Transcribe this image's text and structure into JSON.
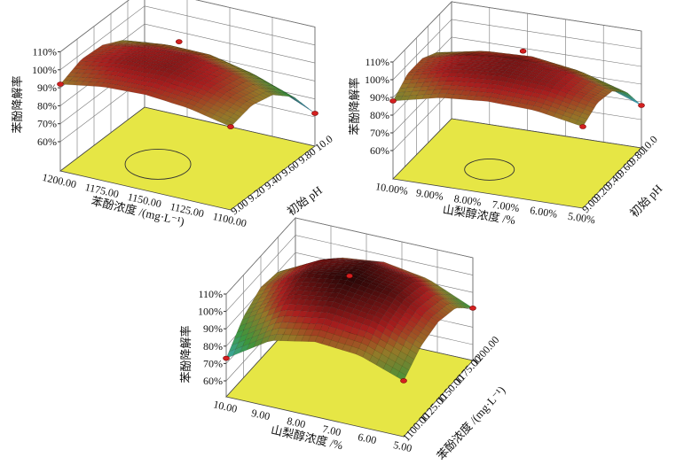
{
  "chart_data": [
    {
      "type": "surface3d",
      "zlabel": "苯酚降解率",
      "xlabel": "苯酚浓度 /(mg·L⁻¹)",
      "ylabel": "初始 pH",
      "x_tick_labels": [
        "1200.00",
        "1175.00",
        "1150.00",
        "1125.00",
        "1100.00"
      ],
      "y_tick_labels": [
        "9.00",
        "9.20",
        "9.40",
        "9.60",
        "9.80",
        "10.0"
      ],
      "z_tick_labels": [
        "60%",
        "70%",
        "80%",
        "90%",
        "100%",
        "110%"
      ],
      "xlim": [
        1100,
        1200
      ],
      "ylim": [
        9.0,
        10.0
      ],
      "zlim": [
        60,
        110
      ],
      "x": [
        1100,
        1125,
        1150,
        1175,
        1200
      ],
      "y": [
        9.0,
        9.25,
        9.5,
        9.75,
        10.0
      ],
      "z": [
        [
          90,
          93,
          90,
          80,
          62
        ],
        [
          95,
          99,
          97,
          88,
          72
        ],
        [
          97,
          102,
          101,
          93,
          78
        ],
        [
          96,
          101,
          100,
          93,
          80
        ],
        [
          92,
          97,
          96,
          90,
          78
        ]
      ],
      "points": [
        [
          1200,
          9.0,
          92
        ],
        [
          1100,
          9.0,
          90
        ],
        [
          1100,
          10.0,
          62
        ],
        [
          1160,
          9.6,
          103
        ]
      ],
      "floor_color": "#e6e645"
    },
    {
      "type": "surface3d",
      "zlabel": "苯酚降解率",
      "xlabel": "山梨醇浓度 /%",
      "ylabel": "初始 pH",
      "x_tick_labels": [
        "10.00%",
        "9.00%",
        "8.00%",
        "7.00%",
        "6.00%",
        "5.00%"
      ],
      "y_tick_labels": [
        "9.00",
        "9.20",
        "9.40",
        "9.60",
        "9.80",
        "10.0"
      ],
      "z_tick_labels": [
        "60%",
        "70%",
        "80%",
        "90%",
        "100%",
        "110%"
      ],
      "xlim": [
        5,
        10
      ],
      "ylim": [
        9.0,
        10.0
      ],
      "zlim": [
        60,
        110
      ],
      "x": [
        5,
        6.25,
        7.5,
        8.75,
        10
      ],
      "y": [
        9.0,
        9.25,
        9.5,
        9.75,
        10.0
      ],
      "z": [
        [
          90,
          95,
          93,
          84,
          68
        ],
        [
          95,
          101,
          100,
          92,
          78
        ],
        [
          96,
          103,
          103,
          96,
          83
        ],
        [
          94,
          101,
          101,
          95,
          83
        ],
        [
          88,
          95,
          95,
          90,
          80
        ]
      ],
      "points": [
        [
          10,
          9.0,
          88
        ],
        [
          5,
          9.0,
          90
        ],
        [
          5,
          10.0,
          68
        ],
        [
          7.5,
          9.6,
          104
        ]
      ],
      "floor_color": "#e6e645"
    },
    {
      "type": "surface3d",
      "zlabel": "苯酚降解率",
      "xlabel": "山梨醇浓度 /%",
      "ylabel": "苯酚浓度 /(mg·L⁻¹)",
      "x_tick_labels": [
        "10.00",
        "9.00",
        "8.00",
        "7.00",
        "6.00",
        "5.00"
      ],
      "y_tick_labels": [
        "1100.00",
        "1125.00",
        "1150.00",
        "1175.00",
        "1200.00"
      ],
      "z_tick_labels": [
        "60%",
        "70%",
        "80%",
        "90%",
        "100%",
        "110%"
      ],
      "xlim": [
        5,
        10
      ],
      "ylim": [
        1100,
        1200
      ],
      "zlim": [
        60,
        110
      ],
      "x": [
        5,
        6.25,
        7.5,
        8.75,
        10
      ],
      "y": [
        1100,
        1125,
        1150,
        1175,
        1200
      ],
      "z": [
        [
          83,
          92,
          95,
          92,
          81
        ],
        [
          92,
          102,
          106,
          103,
          92
        ],
        [
          94,
          105,
          110,
          107,
          96
        ],
        [
          89,
          101,
          106,
          103,
          93
        ],
        [
          73,
          86,
          92,
          90,
          80
        ]
      ],
      "points": [
        [
          10,
          1100,
          73
        ],
        [
          5,
          1100,
          83
        ],
        [
          5,
          1200,
          81
        ],
        [
          7.5,
          1150,
          110
        ]
      ],
      "floor_color": "#e6e645"
    }
  ]
}
